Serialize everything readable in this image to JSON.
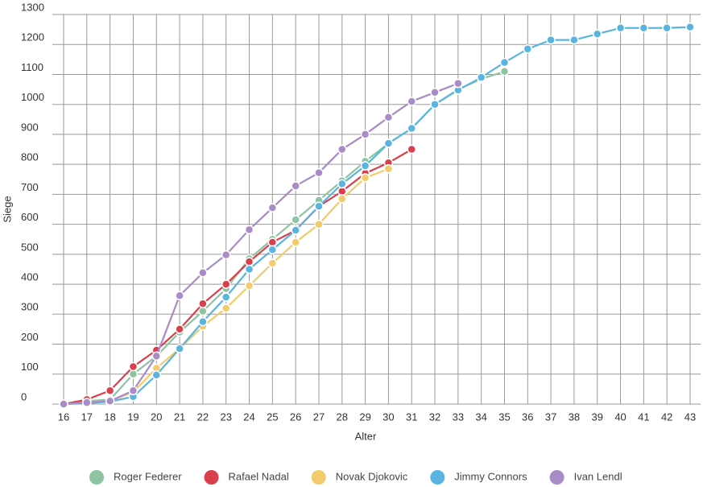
{
  "chart_data": {
    "type": "line",
    "x_label": "Alter",
    "y_label": "Siege",
    "x": [
      16,
      17,
      18,
      19,
      20,
      21,
      22,
      23,
      24,
      25,
      26,
      27,
      28,
      29,
      30,
      31,
      32,
      33,
      34,
      35,
      36,
      37,
      38,
      39,
      40,
      41,
      42,
      43
    ],
    "xlim": [
      16,
      43
    ],
    "xticks": [
      16,
      17,
      18,
      19,
      20,
      21,
      22,
      23,
      24,
      25,
      26,
      27,
      28,
      29,
      30,
      31,
      32,
      33,
      34,
      35,
      36,
      37,
      38,
      39,
      40,
      41,
      42,
      43
    ],
    "ylim": [
      0,
      1300
    ],
    "yticks": [
      0,
      100,
      200,
      300,
      400,
      500,
      600,
      700,
      800,
      900,
      1000,
      1100,
      1200,
      1300
    ],
    "grid": true,
    "legend": "bottom",
    "series": [
      {
        "name": "Roger Federer",
        "color": "#8fc4a3",
        "values": [
          0,
          10,
          15,
          100,
          160,
          240,
          310,
          385,
          485,
          550,
          615,
          680,
          745,
          810,
          870,
          920,
          1000,
          1050,
          1085,
          1110,
          null,
          null,
          null,
          null,
          null,
          null,
          null,
          null
        ]
      },
      {
        "name": "Rafael Nadal",
        "color": "#d9404b",
        "values": [
          0,
          15,
          45,
          125,
          180,
          250,
          335,
          400,
          475,
          540,
          580,
          660,
          710,
          770,
          805,
          850,
          null,
          null,
          null,
          null,
          null,
          null,
          null,
          null,
          null,
          null,
          null,
          null
        ]
      },
      {
        "name": "Novak Djokovic",
        "color": "#f2cb6c",
        "values": [
          0,
          5,
          10,
          40,
          120,
          185,
          260,
          320,
          395,
          470,
          540,
          600,
          685,
          755,
          785,
          null,
          null,
          null,
          null,
          null,
          null,
          null,
          null,
          null,
          null,
          null,
          null,
          null
        ]
      },
      {
        "name": "Jimmy Connors",
        "color": "#5bb4e0",
        "values": [
          0,
          3,
          8,
          25,
          97,
          185,
          275,
          357,
          450,
          515,
          580,
          660,
          735,
          795,
          870,
          920,
          1000,
          1048,
          1090,
          1140,
          1185,
          1215,
          1215,
          1235,
          1255,
          1255,
          1255,
          1258
        ]
      },
      {
        "name": "Ivan Lendl",
        "color": "#a98bc7",
        "values": [
          0,
          5,
          10,
          45,
          160,
          362,
          438,
          498,
          582,
          655,
          728,
          772,
          850,
          900,
          957,
          1010,
          1040,
          1070,
          null,
          null,
          null,
          null,
          null,
          null,
          null,
          null,
          null,
          null
        ]
      }
    ]
  }
}
